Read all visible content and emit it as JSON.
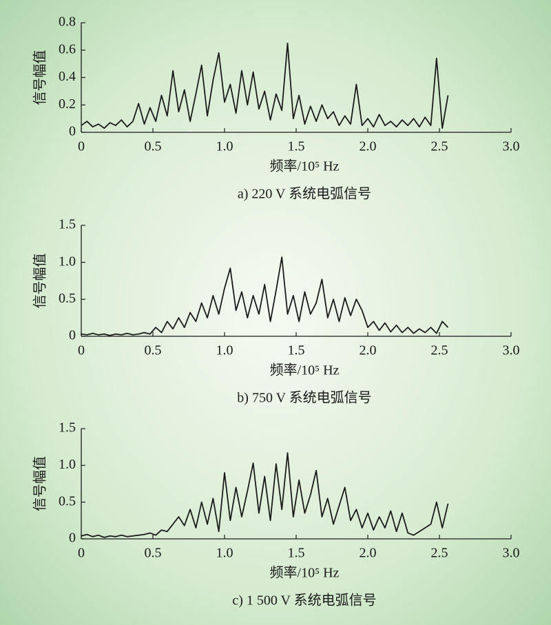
{
  "chart_data": [
    {
      "type": "line",
      "title": "a) 220 V 系统电弧信号",
      "xlabel": "频率/10⁵ Hz",
      "ylabel": "信号幅值",
      "color": "#1a1a1a",
      "x": [
        0,
        0.04,
        0.08,
        0.12,
        0.16,
        0.2,
        0.24,
        0.28,
        0.32,
        0.36,
        0.4,
        0.44,
        0.48,
        0.52,
        0.56,
        0.6,
        0.64,
        0.68,
        0.72,
        0.76,
        0.8,
        0.84,
        0.88,
        0.92,
        0.96,
        1,
        1.04,
        1.08,
        1.12,
        1.16,
        1.2,
        1.24,
        1.28,
        1.32,
        1.36,
        1.4,
        1.44,
        1.48,
        1.52,
        1.56,
        1.6,
        1.64,
        1.68,
        1.72,
        1.76,
        1.8,
        1.84,
        1.88,
        1.92,
        1.96,
        2,
        2.04,
        2.08,
        2.12,
        2.16,
        2.2,
        2.24,
        2.28,
        2.32,
        2.36,
        2.4,
        2.44,
        2.48,
        2.52,
        2.56
      ],
      "values": [
        0.05,
        0.08,
        0.04,
        0.06,
        0.03,
        0.07,
        0.05,
        0.09,
        0.04,
        0.08,
        0.21,
        0.06,
        0.18,
        0.08,
        0.27,
        0.12,
        0.45,
        0.15,
        0.31,
        0.08,
        0.28,
        0.49,
        0.12,
        0.38,
        0.58,
        0.22,
        0.35,
        0.14,
        0.45,
        0.2,
        0.44,
        0.17,
        0.3,
        0.09,
        0.28,
        0.16,
        0.65,
        0.1,
        0.27,
        0.06,
        0.19,
        0.08,
        0.2,
        0.1,
        0.15,
        0.05,
        0.12,
        0.06,
        0.35,
        0.05,
        0.1,
        0.04,
        0.13,
        0.05,
        0.08,
        0.04,
        0.09,
        0.05,
        0.1,
        0.04,
        0.11,
        0.05,
        0.54,
        0.03,
        0.27
      ],
      "xlim": [
        0,
        3
      ],
      "xticks": [
        0,
        0.5,
        {
          "value": 1,
          "label": "1.0"
        },
        1.5,
        {
          "value": 2,
          "label": "2.0"
        },
        2.5,
        {
          "value": 3,
          "label": "3.0"
        }
      ],
      "ylim": [
        0,
        0.8
      ],
      "yticks": [
        0,
        0.2,
        0.4,
        0.6,
        0.8
      ]
    },
    {
      "type": "line",
      "title": "b) 750 V 系统电弧信号",
      "xlabel": "频率/10⁵ Hz",
      "ylabel": "信号幅值",
      "color": "#1a1a1a",
      "x": [
        0,
        0.04,
        0.08,
        0.12,
        0.16,
        0.2,
        0.24,
        0.28,
        0.32,
        0.36,
        0.4,
        0.44,
        0.48,
        0.52,
        0.56,
        0.6,
        0.64,
        0.68,
        0.72,
        0.76,
        0.8,
        0.84,
        0.88,
        0.92,
        0.96,
        1,
        1.04,
        1.08,
        1.12,
        1.16,
        1.2,
        1.24,
        1.28,
        1.32,
        1.36,
        1.4,
        1.44,
        1.48,
        1.52,
        1.56,
        1.6,
        1.64,
        1.68,
        1.72,
        1.76,
        1.8,
        1.84,
        1.88,
        1.92,
        1.96,
        2,
        2.04,
        2.08,
        2.12,
        2.16,
        2.2,
        2.24,
        2.28,
        2.32,
        2.36,
        2.4,
        2.44,
        2.48,
        2.52,
        2.56
      ],
      "values": [
        0.03,
        0.02,
        0.04,
        0.02,
        0.03,
        0.01,
        0.03,
        0.02,
        0.04,
        0.02,
        0.03,
        0.05,
        0.03,
        0.12,
        0.05,
        0.2,
        0.1,
        0.25,
        0.12,
        0.32,
        0.2,
        0.45,
        0.25,
        0.55,
        0.3,
        0.65,
        0.92,
        0.35,
        0.6,
        0.25,
        0.55,
        0.3,
        0.7,
        0.2,
        0.62,
        1.07,
        0.3,
        0.55,
        0.2,
        0.6,
        0.3,
        0.45,
        0.77,
        0.25,
        0.5,
        0.2,
        0.52,
        0.28,
        0.5,
        0.35,
        0.12,
        0.2,
        0.08,
        0.18,
        0.06,
        0.15,
        0.05,
        0.12,
        0.04,
        0.1,
        0.05,
        0.12,
        0.04,
        0.2,
        0.12
      ],
      "xlim": [
        0,
        3
      ],
      "xticks": [
        0,
        0.5,
        {
          "value": 1,
          "label": "1.0"
        },
        1.5,
        {
          "value": 2,
          "label": "2.0"
        },
        2.5,
        {
          "value": 3,
          "label": "3.0"
        }
      ],
      "ylim": [
        0,
        1.5
      ],
      "yticks": [
        0,
        0.5,
        {
          "value": 1,
          "label": "1.0"
        },
        1.5
      ]
    },
    {
      "type": "line",
      "title": "c) 1 500 V 系统电弧信号",
      "xlabel": "频率/10⁵ Hz",
      "ylabel": "信号幅值",
      "color": "#1a1a1a",
      "x": [
        0,
        0.04,
        0.08,
        0.12,
        0.16,
        0.2,
        0.24,
        0.28,
        0.32,
        0.36,
        0.4,
        0.44,
        0.48,
        0.52,
        0.56,
        0.6,
        0.64,
        0.68,
        0.72,
        0.76,
        0.8,
        0.84,
        0.88,
        0.92,
        0.96,
        1,
        1.04,
        1.08,
        1.12,
        1.16,
        1.2,
        1.24,
        1.28,
        1.32,
        1.36,
        1.4,
        1.44,
        1.48,
        1.52,
        1.56,
        1.6,
        1.64,
        1.68,
        1.72,
        1.76,
        1.8,
        1.84,
        1.88,
        1.92,
        1.96,
        2,
        2.04,
        2.08,
        2.12,
        2.16,
        2.2,
        2.24,
        2.28,
        2.32,
        2.36,
        2.4,
        2.44,
        2.48,
        2.52,
        2.56
      ],
      "values": [
        0.04,
        0.06,
        0.03,
        0.05,
        0.02,
        0.04,
        0.03,
        0.05,
        0.03,
        0.04,
        0.05,
        0.06,
        0.08,
        0.05,
        0.12,
        0.1,
        0.2,
        0.3,
        0.18,
        0.4,
        0.15,
        0.5,
        0.2,
        0.55,
        0.1,
        0.9,
        0.25,
        0.7,
        0.3,
        0.65,
        1.03,
        0.35,
        0.85,
        0.25,
        1.02,
        0.4,
        1.17,
        0.3,
        0.8,
        0.35,
        0.6,
        0.93,
        0.3,
        0.55,
        0.2,
        0.45,
        0.7,
        0.25,
        0.4,
        0.15,
        0.35,
        0.12,
        0.3,
        0.15,
        0.38,
        0.1,
        0.35,
        0.08,
        0.05,
        0.1,
        0.15,
        0.2,
        0.5,
        0.15,
        0.48
      ],
      "xlim": [
        0,
        3
      ],
      "xticks": [
        0,
        0.5,
        {
          "value": 1,
          "label": "1.0"
        },
        1.5,
        {
          "value": 2,
          "label": "2.0"
        },
        2.5,
        {
          "value": 3,
          "label": "3.0"
        }
      ],
      "ylim": [
        0,
        1.5
      ],
      "yticks": [
        0,
        0.5,
        {
          "value": 1,
          "label": "1.0"
        },
        1.5
      ]
    }
  ]
}
